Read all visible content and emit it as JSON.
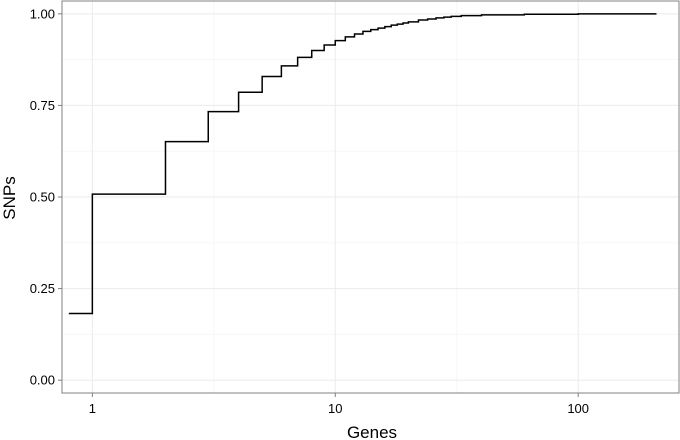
{
  "chart_data": {
    "type": "line",
    "subtype": "step-ecdf",
    "xlabel": "Genes",
    "ylabel": "SNPs",
    "x_scale": "log10",
    "xlim": [
      0.75,
      260
    ],
    "ylim": [
      -0.035,
      1.035
    ],
    "x_ticks": [
      1,
      10,
      100
    ],
    "x_tick_labels": [
      "1",
      "10",
      "100"
    ],
    "y_ticks": [
      0,
      0.25,
      0.5,
      0.75,
      1
    ],
    "y_tick_labels": [
      "0.00",
      "0.25",
      "0.50",
      "0.75",
      "1.00"
    ],
    "grid": true,
    "legend": "none",
    "series": [
      {
        "x": [
          0.8,
          1,
          2,
          3,
          4,
          5,
          6,
          7,
          8,
          9,
          10,
          11,
          12,
          13,
          14,
          15,
          16,
          17,
          18,
          19,
          20,
          22,
          24,
          26,
          28,
          30,
          33,
          40,
          60,
          100,
          210
        ],
        "y": [
          0.182,
          0.508,
          0.651,
          0.733,
          0.786,
          0.829,
          0.858,
          0.881,
          0.9,
          0.915,
          0.927,
          0.937,
          0.945,
          0.952,
          0.957,
          0.961,
          0.965,
          0.969,
          0.972,
          0.975,
          0.978,
          0.983,
          0.986,
          0.989,
          0.991,
          0.993,
          0.995,
          0.997,
          0.999,
          1.0,
          1.0
        ]
      }
    ],
    "colors": {
      "line": "#000000",
      "panel_border": "#808080",
      "major_grid": "#ebebeb",
      "minor_grid": "#f7f7f7",
      "background": "#ffffff"
    }
  }
}
